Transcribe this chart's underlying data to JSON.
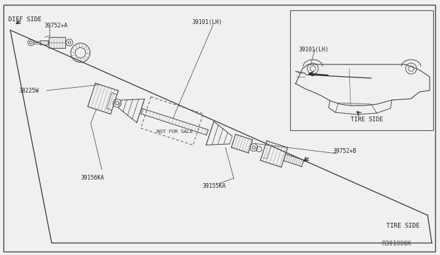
{
  "bg_color": "#f0f0f0",
  "border_color": "#333333",
  "line_color": "#333333",
  "text_color": "#222222",
  "diagram_title": "R391006K",
  "labels": {
    "diff_side": "DIFF SIDE",
    "tire_side_top": "TIRE SIDE",
    "tire_side_bottom": "TIRE SIDE",
    "part_39752A": "39752+A",
    "part_38225W": "38225W",
    "part_39156KA": "39156KA",
    "part_39101LH_top": "39101(LH)",
    "part_39101LH_mid": "39101(LH)",
    "part_39155KA": "39155KA",
    "part_39752B": "39752+B",
    "not_for_sale": "NOT FOR SALE"
  },
  "figsize": [
    6.4,
    3.72
  ],
  "dpi": 100
}
